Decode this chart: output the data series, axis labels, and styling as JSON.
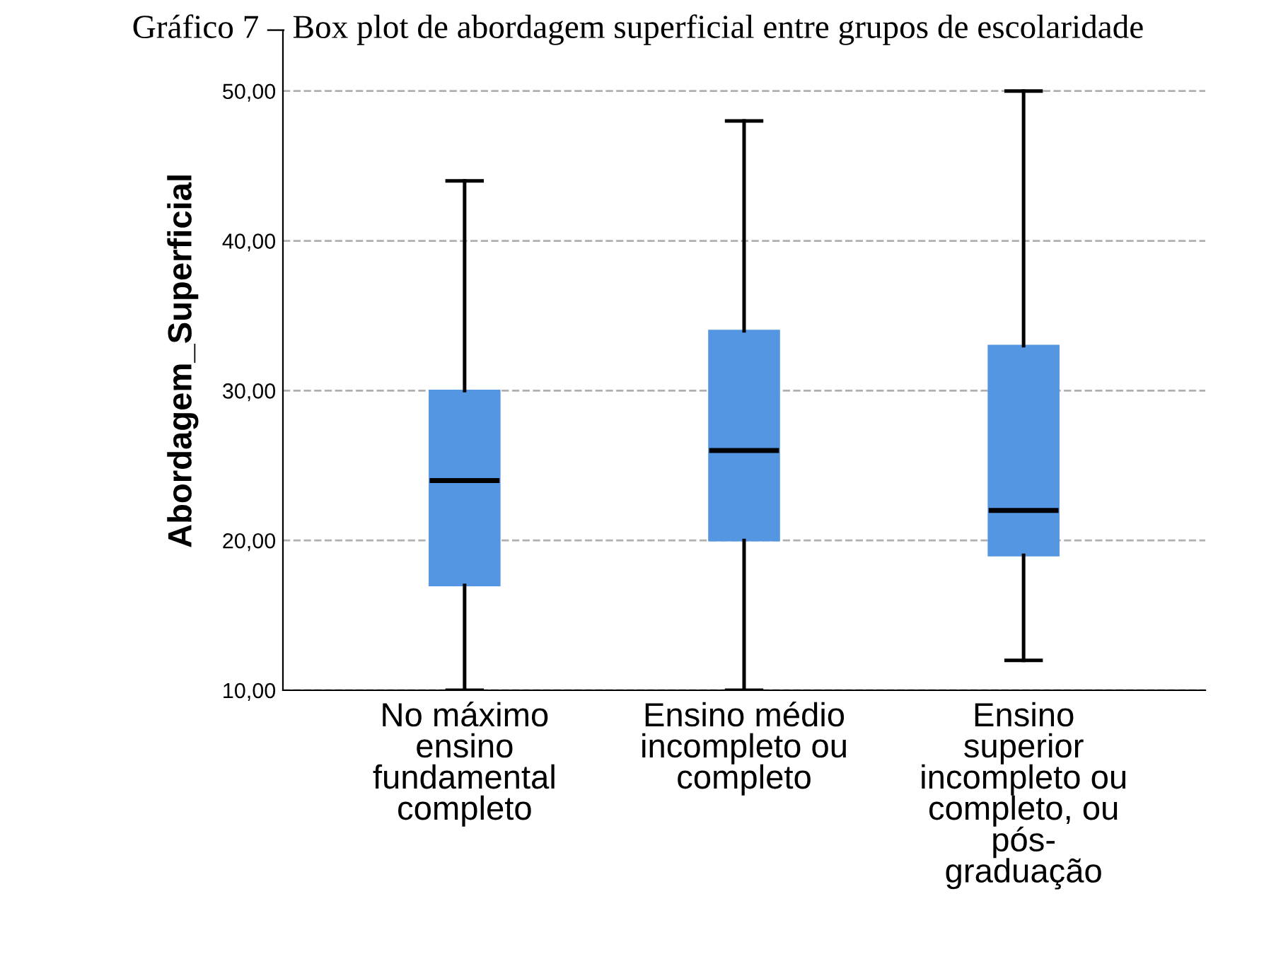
{
  "chart_data": {
    "type": "box",
    "title": "Gráfico 7 – Box plot de abordagem superficial entre grupos de escolaridade",
    "ylabel": "Abordagem_Superficial",
    "categories": [
      "No máximo\nensino\nfundamental\ncompleto",
      "Ensino médio\nincompleto ou\ncompleto",
      "Ensino\nsuperior\nincompleto ou\ncompleto, ou\npós-\ngraduação"
    ],
    "boxes": [
      {
        "low": 10,
        "q1": 17,
        "median": 24,
        "q3": 30,
        "high": 44
      },
      {
        "low": 10,
        "q1": 20,
        "median": 26,
        "q3": 34,
        "high": 48
      },
      {
        "low": 12,
        "q1": 19,
        "median": 22,
        "q3": 33,
        "high": 50
      }
    ],
    "color": "#5596e2",
    "ylim": [
      10,
      54
    ],
    "yticks": [
      {
        "value": 10,
        "label": "10,00"
      },
      {
        "value": 20,
        "label": "20,00"
      },
      {
        "value": 30,
        "label": "30,00"
      },
      {
        "value": 40,
        "label": "40,00"
      },
      {
        "value": 50,
        "label": "50,00"
      }
    ],
    "grid": "y",
    "line_style": "dashed"
  }
}
